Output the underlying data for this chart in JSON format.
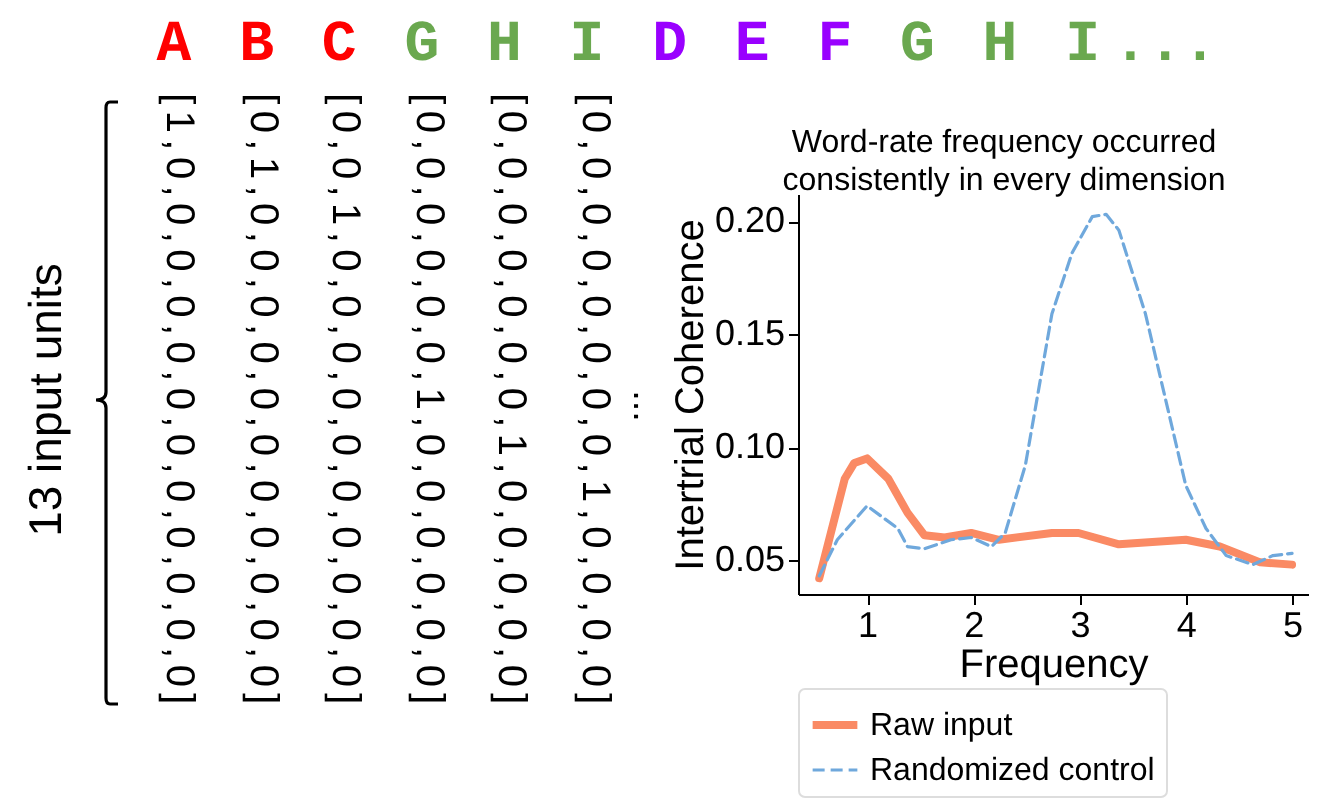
{
  "chart_data": {
    "type": "line",
    "title": "Word-rate frequency occurred consistently in every dimension",
    "xlabel": "Frequency",
    "ylabel": "Intertrial Coherence",
    "annotations": [
      "A B C G H I D E F G H I ...",
      "13 input units",
      "[1,0,0,0,0,0,0,0,0,0,0,0,0]",
      "[0,1,0,0,0,0,0,0,0,0,0,0,0]",
      "[0,0,1,0,0,0,0,0,0,0,0,0,0]",
      "[0,0,0,0,0,0,1,0,0,0,0,0,0]",
      "[0,0,0,0,0,0,0,1,0,0,0,0,0]",
      "[0,0,0,0,0,0,0,0,1,0,0,0,0]",
      "..."
    ],
    "series": [
      {
        "name": "Raw input",
        "color": "#fa8a64",
        "line_style": "solid",
        "x": [
          0.55,
          0.79,
          0.88,
          1.0,
          1.2,
          1.38,
          1.54,
          1.73,
          1.98,
          2.24,
          2.74,
          2.99,
          3.37,
          4.0,
          4.32,
          4.7,
          5.0
        ],
        "values": [
          0.042,
          0.086,
          0.093,
          0.095,
          0.086,
          0.071,
          0.061,
          0.06,
          0.062,
          0.059,
          0.062,
          0.062,
          0.057,
          0.059,
          0.056,
          0.049,
          0.048
        ]
      },
      {
        "name": "Randomized control",
        "color": "#6fa8dc",
        "line_style": "dashed",
        "x": [
          0.55,
          0.72,
          1.0,
          1.29,
          1.38,
          1.54,
          1.79,
          1.98,
          2.17,
          2.3,
          2.49,
          2.74,
          2.93,
          3.12,
          3.25,
          3.37,
          3.62,
          3.81,
          4.0,
          4.19,
          4.38,
          4.63,
          4.82,
          5.0
        ],
        "values": [
          0.043,
          0.059,
          0.074,
          0.064,
          0.056,
          0.055,
          0.059,
          0.06,
          0.056,
          0.062,
          0.092,
          0.159,
          0.186,
          0.202,
          0.203,
          0.196,
          0.159,
          0.121,
          0.083,
          0.064,
          0.052,
          0.048,
          0.052,
          0.053
        ]
      }
    ],
    "xlim": [
      0.35,
      5.15
    ],
    "xticks": [
      1,
      2,
      3,
      4,
      5
    ],
    "ylim": [
      0.035,
      0.212
    ],
    "yticks": [
      {
        "value": 0.05,
        "label": "0.05"
      },
      {
        "value": 0.1,
        "label": "0.10"
      },
      {
        "value": 0.15,
        "label": "0.15"
      },
      {
        "value": 0.2,
        "label": "0.20"
      }
    ],
    "grid": false,
    "legend": "bottom",
    "marker": "none"
  }
}
